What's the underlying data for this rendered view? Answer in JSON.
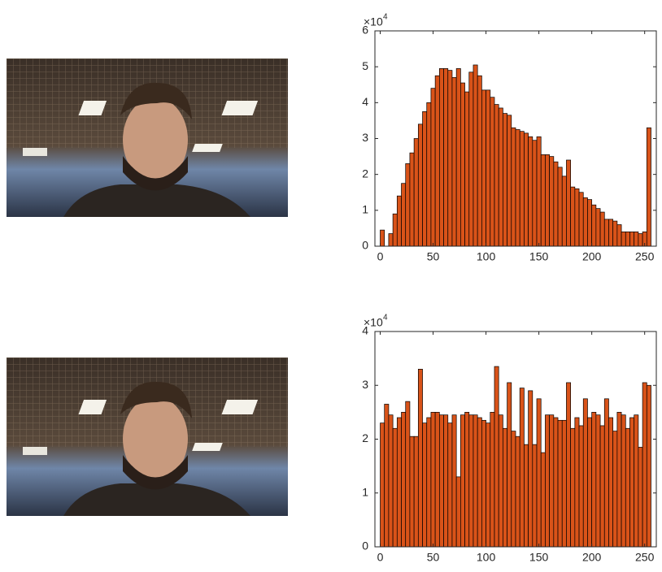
{
  "chart_data": [
    {
      "type": "histogram",
      "bins": [
        0,
        4,
        8,
        12,
        16,
        20,
        24,
        28,
        32,
        36,
        40,
        44,
        48,
        52,
        56,
        60,
        64,
        68,
        72,
        76,
        80,
        84,
        88,
        92,
        96,
        100,
        104,
        108,
        112,
        116,
        120,
        124,
        128,
        132,
        136,
        140,
        144,
        148,
        152,
        156,
        160,
        164,
        168,
        172,
        176,
        180,
        184,
        188,
        192,
        196,
        200,
        204,
        208,
        212,
        216,
        220,
        224,
        228,
        232,
        236,
        240,
        244,
        248,
        252,
        256
      ],
      "values": [
        0.45,
        0,
        0.35,
        0.9,
        1.4,
        1.75,
        2.3,
        2.6,
        3.0,
        3.4,
        3.75,
        4.0,
        4.4,
        4.75,
        4.95,
        4.95,
        4.9,
        4.7,
        4.95,
        4.55,
        4.3,
        4.85,
        5.05,
        4.75,
        4.35,
        4.35,
        4.15,
        3.95,
        3.85,
        3.7,
        3.65,
        3.3,
        3.25,
        3.2,
        3.15,
        3.05,
        2.95,
        3.05,
        2.55,
        2.55,
        2.5,
        2.35,
        2.2,
        1.95,
        2.4,
        1.65,
        1.6,
        1.5,
        1.35,
        1.3,
        1.15,
        1.05,
        0.95,
        0.75,
        0.75,
        0.7,
        0.6,
        0.4,
        0.4,
        0.4,
        0.4,
        0.35,
        0.4,
        3.3
      ],
      "color": "#d95319",
      "xlim": [
        -5,
        261
      ],
      "xticks": [
        0,
        50,
        100,
        150,
        200,
        250
      ],
      "ylim": [
        0,
        6
      ],
      "yticks": [
        0,
        1,
        2,
        3,
        4,
        5,
        6
      ],
      "y_exponent": {
        "base": "×10",
        "power": "4"
      }
    },
    {
      "type": "histogram",
      "bins": [
        0,
        4,
        8,
        12,
        16,
        20,
        24,
        28,
        32,
        36,
        40,
        44,
        48,
        52,
        56,
        60,
        64,
        68,
        72,
        76,
        80,
        84,
        88,
        92,
        96,
        100,
        104,
        108,
        112,
        116,
        120,
        124,
        128,
        132,
        136,
        140,
        144,
        148,
        152,
        156,
        160,
        164,
        168,
        172,
        176,
        180,
        184,
        188,
        192,
        196,
        200,
        204,
        208,
        212,
        216,
        220,
        224,
        228,
        232,
        236,
        240,
        244,
        248,
        252,
        256
      ],
      "values": [
        2.3,
        2.65,
        2.45,
        2.2,
        2.4,
        2.5,
        2.7,
        2.05,
        2.05,
        3.3,
        2.3,
        2.4,
        2.5,
        2.5,
        2.45,
        2.45,
        2.3,
        2.45,
        1.3,
        2.45,
        2.5,
        2.45,
        2.45,
        2.4,
        2.35,
        2.3,
        2.5,
        3.35,
        2.45,
        2.2,
        3.05,
        2.15,
        2.05,
        2.95,
        1.9,
        2.9,
        1.9,
        2.75,
        1.75,
        2.45,
        2.45,
        2.4,
        2.35,
        2.35,
        3.05,
        2.2,
        2.4,
        2.25,
        2.75,
        2.4,
        2.5,
        2.45,
        2.25,
        2.75,
        2.4,
        2.15,
        2.5,
        2.45,
        2.2,
        2.4,
        2.45,
        1.85,
        3.05,
        3.0
      ],
      "color": "#d95319",
      "xlim": [
        -5,
        261
      ],
      "xticks": [
        0,
        50,
        100,
        150,
        200,
        250
      ],
      "ylim": [
        0,
        4
      ],
      "yticks": [
        0,
        1,
        2,
        3,
        4
      ],
      "y_exponent": {
        "base": "×10",
        "power": "4"
      }
    }
  ]
}
